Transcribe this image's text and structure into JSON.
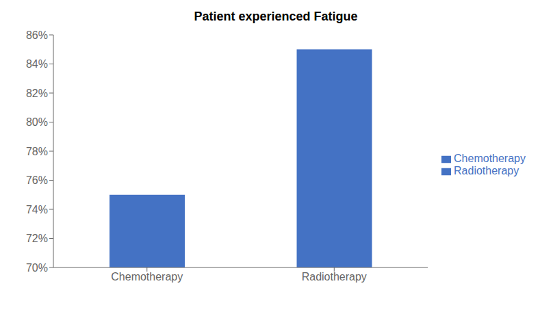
{
  "chart_data": {
    "type": "bar",
    "title": "Patient experienced Fatigue",
    "categories": [
      "Chemotherapy",
      "Radiotherapy"
    ],
    "series": [
      {
        "name": "Chemotherapy",
        "color": "#4472C4",
        "values": [
          75,
          null
        ]
      },
      {
        "name": "Radiotherapy",
        "color": "#4472C4",
        "values": [
          null,
          85
        ]
      }
    ],
    "ylim": [
      70,
      86
    ],
    "yticks": [
      {
        "value": 70,
        "label": "70%"
      },
      {
        "value": 72,
        "label": "72%"
      },
      {
        "value": 74,
        "label": "74%"
      },
      {
        "value": 76,
        "label": "76%"
      },
      {
        "value": 78,
        "label": "78%"
      },
      {
        "value": 80,
        "label": "80%"
      },
      {
        "value": 82,
        "label": "82%"
      },
      {
        "value": 84,
        "label": "84%"
      },
      {
        "value": 86,
        "label": "86%"
      }
    ],
    "grid": false,
    "legend": "right"
  }
}
